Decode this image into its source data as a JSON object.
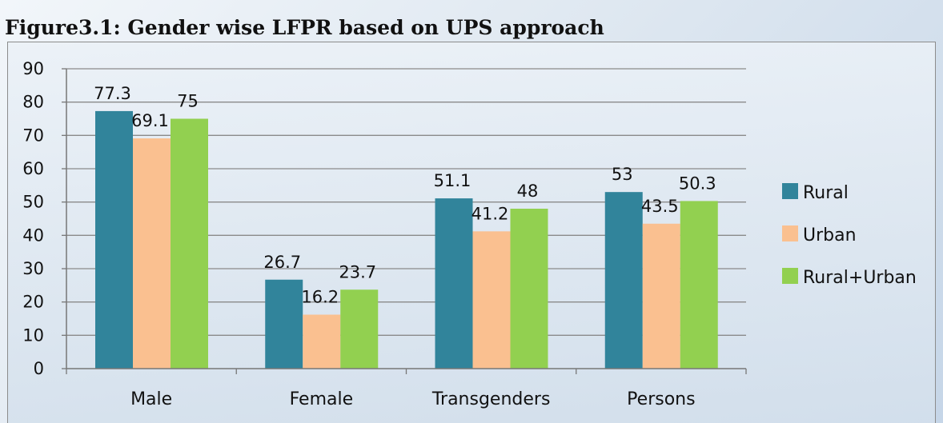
{
  "page": {
    "title": "Figure3.1: Gender wise LFPR based on UPS approach"
  },
  "chart_data": {
    "type": "bar",
    "title": "Figure3.1: Gender wise LFPR based on UPS approach",
    "categories": [
      "Male",
      "Female",
      "Transgenders",
      "Persons"
    ],
    "series": [
      {
        "name": "Rural",
        "color": "#31849b",
        "values": [
          77.3,
          26.7,
          51.1,
          53
        ]
      },
      {
        "name": "Urban",
        "color": "#fac090",
        "values": [
          69.1,
          16.2,
          41.2,
          43.5
        ]
      },
      {
        "name": "Rural+Urban",
        "color": "#92d050",
        "values": [
          75,
          23.7,
          48,
          50.3
        ]
      }
    ],
    "xlabel": "",
    "ylabel": "",
    "ylim": [
      0,
      90
    ],
    "yticks": [
      0,
      10,
      20,
      30,
      40,
      50,
      60,
      70,
      80,
      90
    ],
    "grid": true,
    "legend": "right"
  }
}
